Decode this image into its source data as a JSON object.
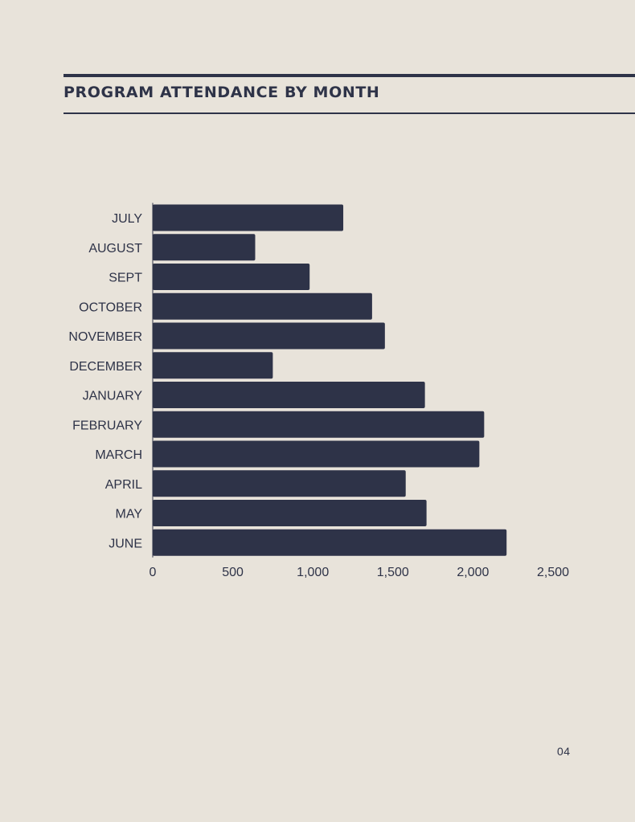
{
  "header": {
    "title": "PROGRAM ATTENDANCE BY MONTH"
  },
  "footer": {
    "page_number": "04"
  },
  "colors": {
    "background": "#e8e3da",
    "bar": "#2e3348",
    "text": "#2e3348"
  },
  "chart_data": {
    "type": "bar",
    "orientation": "horizontal",
    "title": "PROGRAM ATTENDANCE BY MONTH",
    "xlabel": "",
    "ylabel": "",
    "categories": [
      "JULY",
      "AUGUST",
      "SEPT",
      "OCTOBER",
      "NOVEMBER",
      "DECEMBER",
      "JANUARY",
      "FEBRUARY",
      "MARCH",
      "APRIL",
      "MAY",
      "JUNE"
    ],
    "values": [
      1190,
      640,
      980,
      1370,
      1450,
      750,
      1700,
      2070,
      2040,
      1580,
      1710,
      2210
    ],
    "xlim": [
      0,
      2500
    ],
    "xticks": [
      0,
      500,
      1000,
      1500,
      2000,
      2500
    ],
    "xtick_labels": [
      "0",
      "500",
      "1,000",
      "1,500",
      "2,000",
      "2,500"
    ],
    "grid": false,
    "legend": "none"
  }
}
